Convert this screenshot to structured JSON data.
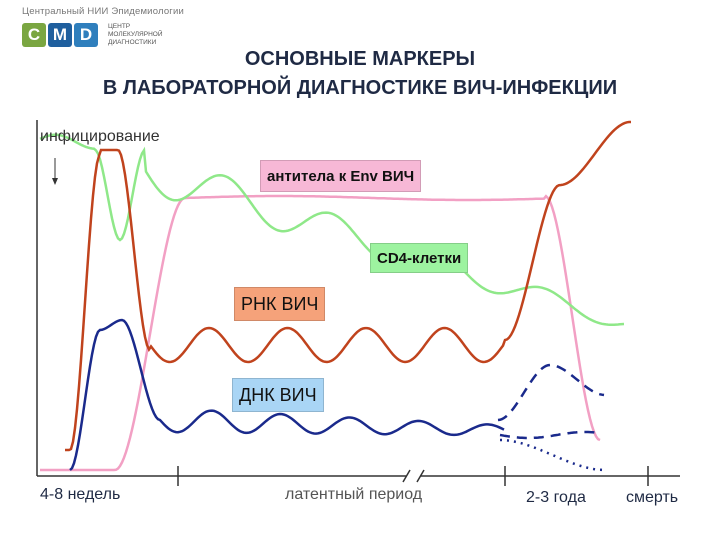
{
  "header": {
    "org_line": "Центральный НИИ Эпидемиологии",
    "logo_letters": [
      "C",
      "M",
      "D"
    ],
    "logo_text": "ЦЕНТР МОЛЕКУЛЯРНОЙ ДИАГНОСТИКИ"
  },
  "title": {
    "line1": "ОСНОВНЫЕ МАРКЕРЫ",
    "line2": "В ЛАБОРАТОРНОЙ ДИАГНОСТИКЕ ВИЧ-ИНФЕКЦИИ"
  },
  "annotations": {
    "infection": "инфицирование"
  },
  "series_labels": {
    "antibodies": "антитела к Env ВИЧ",
    "cd4": "CD4-клетки",
    "rna": "РНК ВИЧ",
    "dna": "ДНК ВИЧ"
  },
  "axis": {
    "ticks": [
      "4-8 недель",
      "латентный период",
      "2-3 года",
      "смерть"
    ]
  },
  "colors": {
    "antibodies": "#f2a0c4",
    "antibodies_box": "#f7b8d6",
    "cd4": "#8fe889",
    "cd4_box": "#9df3a0",
    "rna": "#c0431d",
    "rna_box": "#f5a27a",
    "dna": "#1a2a8c",
    "dna_box": "#a9d5f5"
  }
}
